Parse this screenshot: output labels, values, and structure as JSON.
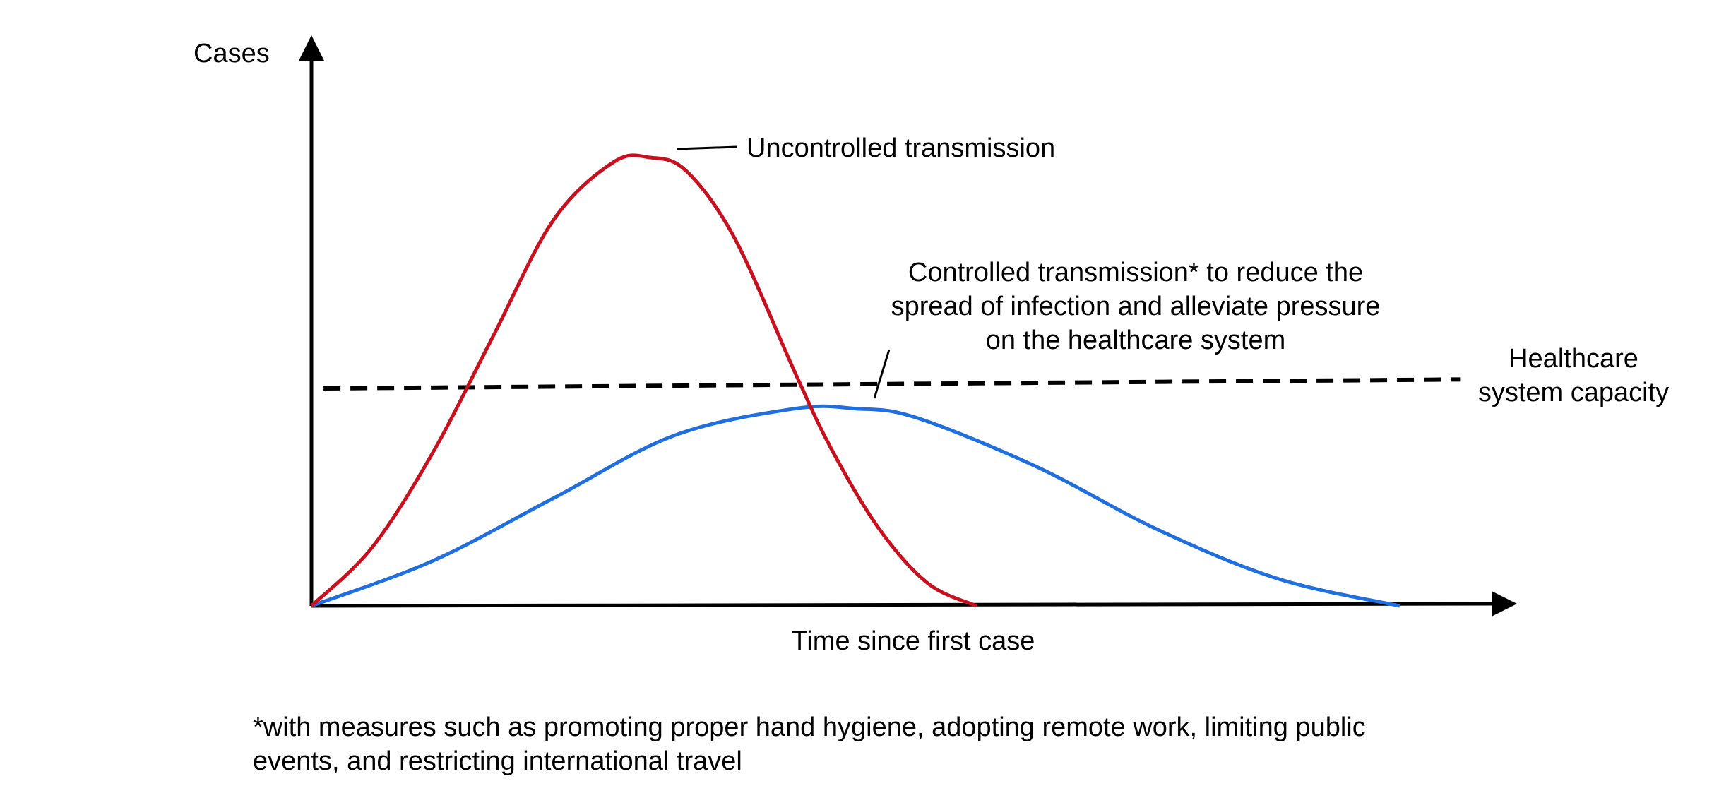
{
  "colors": {
    "uncontrolled": "#C8101E",
    "controlled": "#1F6FE0",
    "capacity": "#000000",
    "axis": "#000000"
  },
  "chart_data": {
    "type": "line",
    "xlabel": "Time since first case",
    "ylabel": "Cases",
    "ticks": "none",
    "grid": false,
    "series": [
      {
        "name": "Uncontrolled transmission",
        "color": "#C8101E",
        "curve": "bell",
        "x": [
          0,
          0.05,
          0.1,
          0.15,
          0.2,
          0.25,
          0.28,
          0.31,
          0.35,
          0.4,
          0.43,
          0.47,
          0.51,
          0.55
        ],
        "y": [
          0,
          0.13,
          0.34,
          0.6,
          0.86,
          0.99,
          1.0,
          0.97,
          0.82,
          0.52,
          0.35,
          0.17,
          0.05,
          0
        ]
      },
      {
        "name": "Controlled transmission* to reduce the spread of infection and alleviate pressure on the healthcare system",
        "color": "#1F6FE0",
        "curve": "bell",
        "x": [
          0,
          0.1,
          0.2,
          0.3,
          0.4,
          0.45,
          0.5,
          0.6,
          0.7,
          0.8,
          0.9
        ],
        "y": [
          0,
          0.1,
          0.24,
          0.38,
          0.44,
          0.44,
          0.42,
          0.31,
          0.17,
          0.06,
          0
        ]
      },
      {
        "name": "Healthcare system capacity",
        "color": "#000000",
        "style": "dashed",
        "x": [
          0.01,
          0.95
        ],
        "y": [
          0.485,
          0.505
        ]
      }
    ],
    "annotations": [
      {
        "text": "Uncontrolled transmission",
        "series": 0
      },
      {
        "lines": [
          "Controlled transmission* to reduce the",
          "spread of infection and alleviate pressure",
          "on the healthcare system"
        ],
        "series": 1
      },
      {
        "lines": [
          "Healthcare",
          "system capacity"
        ],
        "series": 2
      }
    ],
    "footnote": [
      "*with measures such as promoting proper hand hygiene, adopting remote work, limiting public",
      "events, and restricting international travel"
    ]
  }
}
